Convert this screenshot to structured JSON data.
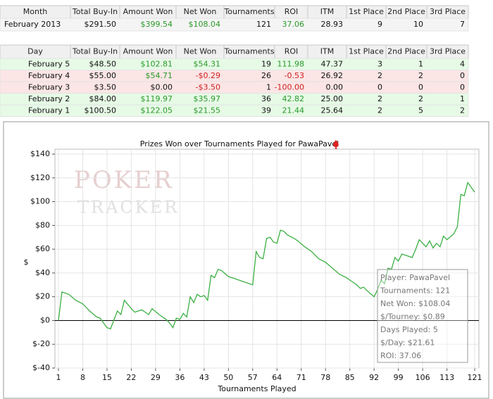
{
  "month_table": {
    "columns": [
      "Month",
      "Total Buy-In",
      "Amount Won",
      "Net Won",
      "Tournaments",
      "ROI",
      "ITM",
      "1st Place",
      "2nd Place",
      "3rd Place"
    ],
    "rows": [
      [
        "February 2013",
        "$291.50",
        "$399.54",
        "$108.04",
        "121",
        "37.06",
        "28.93",
        "9",
        "10",
        "7"
      ]
    ]
  },
  "day_table": {
    "columns": [
      "Day",
      "Total Buy-In",
      "Amount Won",
      "Net Won",
      "Tournaments",
      "ROI",
      "ITM",
      "1st Place",
      "2nd Place",
      "3rd Place"
    ],
    "rows": [
      [
        "February 5",
        "$48.50",
        "$102.81",
        "$54.31",
        "19",
        "111.98",
        "47.37",
        "3",
        "1",
        "4"
      ],
      [
        "February 4",
        "$55.00",
        "$54.71",
        "-$0.29",
        "26",
        "-0.53",
        "26.92",
        "2",
        "2",
        "0"
      ],
      [
        "February 3",
        "$3.50",
        "$0.00",
        "-$3.50",
        "1",
        "-100.00",
        "0.00",
        "0",
        "0",
        "0"
      ],
      [
        "February 2",
        "$84.00",
        "$119.97",
        "$35.97",
        "36",
        "42.82",
        "25.00",
        "2",
        "2",
        "1"
      ],
      [
        "February 1",
        "$100.50",
        "$122.05",
        "$21.55",
        "39",
        "21.44",
        "25.64",
        "2",
        "5",
        "2"
      ]
    ]
  },
  "chart_data": {
    "type": "line",
    "title": "Prizes Won over Tournaments Played for PawaPavel",
    "xlabel": "Tournaments Played",
    "ylabel": "$",
    "watermark": [
      "POKER",
      "TRACKER"
    ],
    "x": [
      1,
      2,
      4,
      6,
      8,
      10,
      12,
      13,
      15,
      16,
      18,
      19,
      20,
      22,
      23,
      25,
      27,
      28,
      30,
      32,
      33,
      34,
      35,
      36,
      37,
      38,
      39,
      40,
      41,
      42,
      43,
      44,
      45,
      46,
      47,
      48,
      50,
      52,
      55,
      57,
      58,
      59,
      60,
      61,
      62,
      63,
      64,
      65,
      66,
      67,
      69,
      70,
      72,
      74,
      76,
      78,
      80,
      82,
      84,
      86,
      87,
      88,
      89,
      90,
      92,
      93,
      94,
      95,
      96,
      97,
      98,
      99,
      100,
      102,
      103,
      104,
      105,
      106,
      107,
      108,
      109,
      110,
      111,
      112,
      113,
      115,
      116,
      117,
      118,
      119,
      120,
      121
    ],
    "values": [
      0,
      24,
      22,
      17,
      14,
      8,
      3,
      2,
      -6,
      -7,
      8,
      5,
      17,
      10,
      7,
      9,
      5,
      10,
      5,
      1,
      -2,
      -6,
      2,
      1,
      6,
      3,
      20,
      15,
      22,
      20,
      21,
      17,
      38,
      36,
      43,
      42,
      37,
      35,
      32,
      30,
      58,
      53,
      52,
      69,
      70,
      66,
      65,
      76,
      75,
      72,
      69,
      67,
      62,
      58,
      52,
      49,
      44,
      39,
      36,
      32,
      30,
      27,
      28,
      25,
      20,
      26,
      34,
      31,
      44,
      43,
      53,
      50,
      56,
      54,
      53,
      60,
      68,
      65,
      62,
      67,
      61,
      65,
      62,
      71,
      68,
      73,
      79,
      106,
      105,
      116,
      112,
      108
    ],
    "color": "#3cb043",
    "xlim": [
      1,
      121
    ],
    "xticks": [
      1,
      8,
      15,
      22,
      29,
      36,
      43,
      50,
      57,
      64,
      71,
      78,
      85,
      92,
      99,
      106,
      113,
      121
    ],
    "ylim": [
      -40,
      140
    ],
    "yticks": [
      {
        "value": -40,
        "label": "$-40"
      },
      {
        "value": -20,
        "label": "$-20"
      },
      {
        "value": 0,
        "label": "$0"
      },
      {
        "value": 20,
        "label": "$20"
      },
      {
        "value": 40,
        "label": "$40"
      },
      {
        "value": 60,
        "label": "$60"
      },
      {
        "value": 80,
        "label": "$80"
      },
      {
        "value": 100,
        "label": "$100"
      },
      {
        "value": 120,
        "label": "$120"
      },
      {
        "value": 140,
        "label": "$140"
      }
    ],
    "grid": true
  },
  "info_box": {
    "lines": [
      "Player: PawaPavel",
      "Tournaments: 121",
      "Net Won: $108.04",
      "$/Tourney: $0.89",
      "Days Played: 5",
      "$/Day: $21.61",
      "ROI: 37.06"
    ]
  }
}
